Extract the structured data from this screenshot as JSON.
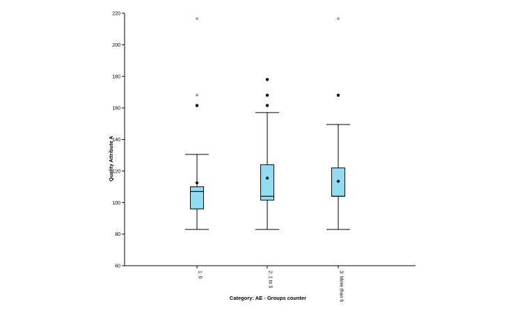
{
  "chart_data": {
    "type": "boxplot",
    "title": "",
    "xlabel": "Category: AE - Groups counter",
    "ylabel": "Quality Attribute A",
    "ylim": [
      60,
      220
    ],
    "yticks": [
      60,
      80,
      100,
      120,
      140,
      160,
      180,
      200,
      220
    ],
    "grid": false,
    "legend": "none",
    "categories": [
      "1: 0",
      "2: 1 to 5",
      "3: More than 6"
    ],
    "boxes": [
      {
        "category": "1: 0",
        "whisker_low": 83,
        "q1": 96,
        "median": 107,
        "q3": 110,
        "whisker_high": 130.5,
        "mean": 112.5,
        "outliers": [
          161.5
        ],
        "extremes": [
          168,
          216.5
        ]
      },
      {
        "category": "2: 1 to 5",
        "whisker_low": 83,
        "q1": 101.5,
        "median": 104,
        "q3": 124,
        "whisker_high": 157,
        "mean": 115.5,
        "outliers": [
          161.5,
          168,
          178
        ],
        "extremes": []
      },
      {
        "category": "3: More than 6",
        "whisker_low": 83,
        "q1": 104,
        "median": 104,
        "q3": 122,
        "whisker_high": 149.5,
        "mean": 113.5,
        "outliers": [
          168
        ],
        "extremes": [
          216.5
        ]
      }
    ],
    "colors": {
      "box_fill": "#8fdcf3",
      "box_stroke": "#000000",
      "outlier": "#000000",
      "extreme": "#d4145a"
    }
  }
}
